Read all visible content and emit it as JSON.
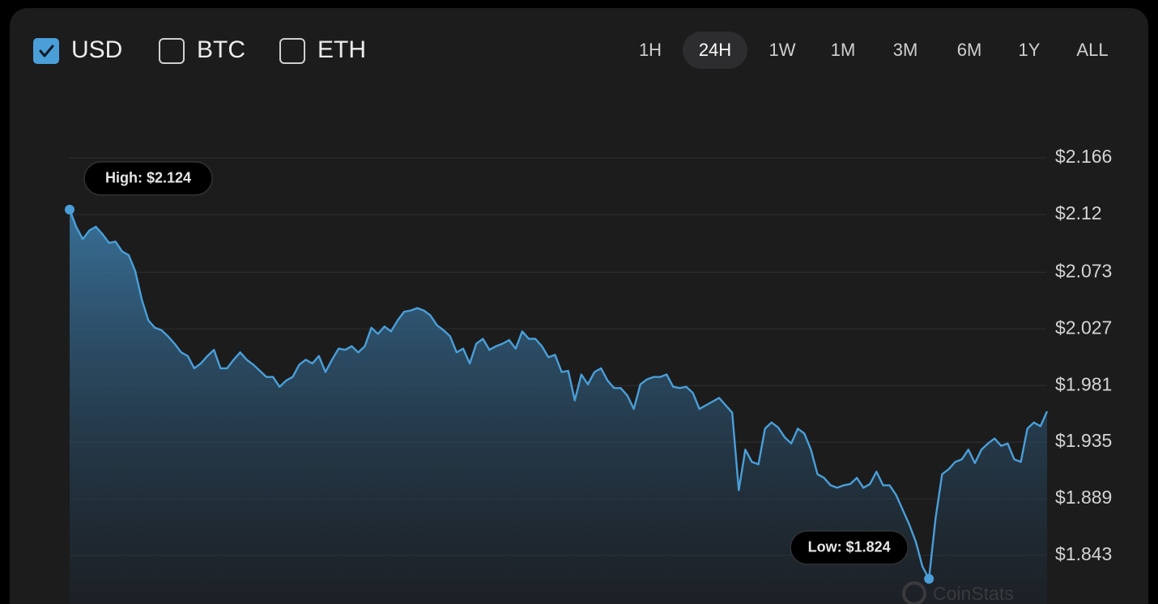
{
  "currencies": [
    {
      "label": "USD",
      "checked": true
    },
    {
      "label": "BTC",
      "checked": false
    },
    {
      "label": "ETH",
      "checked": false
    }
  ],
  "ranges": [
    {
      "label": "1H",
      "selected": false
    },
    {
      "label": "24H",
      "selected": true
    },
    {
      "label": "1W",
      "selected": false
    },
    {
      "label": "1M",
      "selected": false
    },
    {
      "label": "3M",
      "selected": false
    },
    {
      "label": "6M",
      "selected": false
    },
    {
      "label": "1Y",
      "selected": false
    },
    {
      "label": "ALL",
      "selected": false
    }
  ],
  "watermark": "CoinStats",
  "chart_data": {
    "type": "line",
    "color": "#4a9fd8",
    "grid": true,
    "ylim": [
      1.804,
      2.2
    ],
    "yticks": [
      {
        "value": 2.166,
        "label": "$2.166"
      },
      {
        "value": 2.12,
        "label": "$2.12"
      },
      {
        "value": 2.073,
        "label": "$2.073"
      },
      {
        "value": 2.027,
        "label": "$2.027"
      },
      {
        "value": 1.981,
        "label": "$1.981"
      },
      {
        "value": 1.935,
        "label": "$1.935"
      },
      {
        "value": 1.889,
        "label": "$1.889"
      },
      {
        "value": 1.843,
        "label": "$1.843"
      }
    ],
    "annotations": {
      "high": "High: $2.124",
      "low": "Low: $1.824"
    },
    "values": [
      2.124,
      2.11,
      2.1,
      2.107,
      2.11,
      2.104,
      2.097,
      2.098,
      2.09,
      2.087,
      2.074,
      2.051,
      2.034,
      2.028,
      2.026,
      2.021,
      2.015,
      2.008,
      2.005,
      1.995,
      1.999,
      2.005,
      2.01,
      1.995,
      1.995,
      2.002,
      2.008,
      2.002,
      1.998,
      1.993,
      1.988,
      1.988,
      1.98,
      1.985,
      1.988,
      1.998,
      2.002,
      1.999,
      2.005,
      1.992,
      2.002,
      2.011,
      2.01,
      2.013,
      2.008,
      2.013,
      2.028,
      2.023,
      2.029,
      2.025,
      2.034,
      2.041,
      2.042,
      2.044,
      2.042,
      2.038,
      2.03,
      2.026,
      2.021,
      2.008,
      2.011,
      1.999,
      2.015,
      2.019,
      2.01,
      2.013,
      2.015,
      2.018,
      2.011,
      2.025,
      2.019,
      2.019,
      2.013,
      2.004,
      2.006,
      1.992,
      1.993,
      1.969,
      1.99,
      1.982,
      1.992,
      1.995,
      1.985,
      1.979,
      1.979,
      1.973,
      1.962,
      1.982,
      1.986,
      1.988,
      1.988,
      1.99,
      1.98,
      1.979,
      1.98,
      1.975,
      1.962,
      1.965,
      1.968,
      1.971,
      1.965,
      1.959,
      1.896,
      1.929,
      1.919,
      1.917,
      1.946,
      1.951,
      1.947,
      1.939,
      1.934,
      1.946,
      1.942,
      1.929,
      1.909,
      1.906,
      1.9,
      1.898,
      1.9,
      1.901,
      1.906,
      1.898,
      1.901,
      1.911,
      1.9,
      1.9,
      1.892,
      1.88,
      1.868,
      1.854,
      1.834,
      1.824,
      1.873,
      1.909,
      1.913,
      1.919,
      1.921,
      1.929,
      1.918,
      1.929,
      1.934,
      1.938,
      1.932,
      1.934,
      1.921,
      1.919,
      1.946,
      1.951,
      1.948,
      1.96
    ]
  }
}
